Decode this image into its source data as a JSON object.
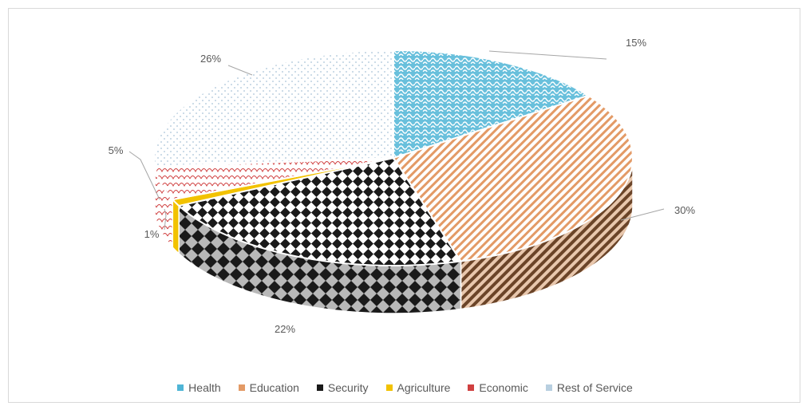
{
  "chart_data": {
    "type": "pie",
    "categories": [
      "Health",
      "Education",
      "Security",
      "Agriculture",
      "Economic",
      "Rest of Service"
    ],
    "values": [
      15,
      30,
      22,
      1,
      5,
      26
    ],
    "labels": [
      "15%",
      "30%",
      "22%",
      "1%",
      "5%",
      "26%"
    ],
    "legend_position": "bottom",
    "colors": {
      "Health": "#4fb5d6",
      "Education": "#e39a66",
      "Security": "#1a1a1a",
      "Agriculture": "#f2c200",
      "Economic": "#d04040",
      "Rest of Service": "#b8cfe0"
    }
  }
}
